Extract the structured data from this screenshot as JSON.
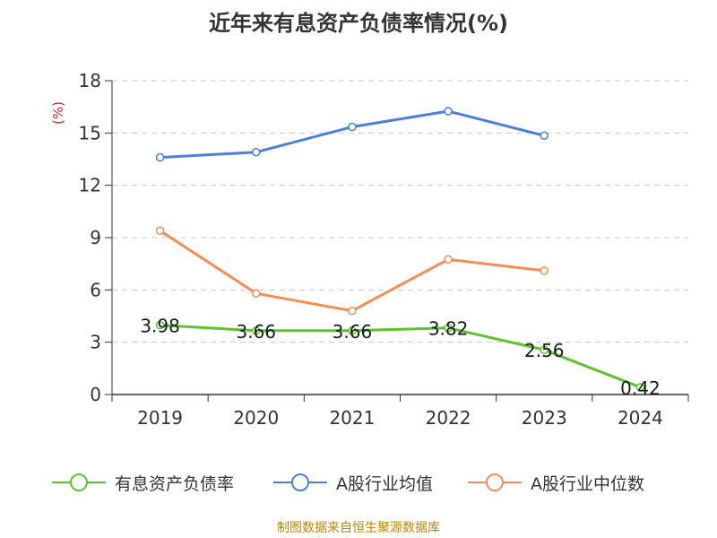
{
  "title": "近年来有息资产负债率情况(%)",
  "source": "制图数据来自恒生聚源数据库",
  "chart_data": {
    "type": "line",
    "title": "近年来有息资产负债率情况(%)",
    "ylabel": "(%)",
    "xlabel": "",
    "categories": [
      "2019",
      "2020",
      "2021",
      "2022",
      "2023",
      "2024"
    ],
    "ylim": [
      0,
      18
    ],
    "yticks": [
      0,
      3,
      6,
      9,
      12,
      15,
      18
    ],
    "grid": true,
    "legend_position": "bottom",
    "series": [
      {
        "name": "有息资产负债率",
        "color": "#5cc42a",
        "values": [
          3.98,
          3.66,
          3.66,
          3.82,
          2.56,
          0.42
        ],
        "labels": [
          "3.98",
          "3.66",
          "3.66",
          "3.82",
          "2.56",
          "0.42"
        ],
        "show_labels": true
      },
      {
        "name": "A股行业均值",
        "color": "#4a7fdb",
        "values": [
          13.6,
          13.9,
          15.35,
          16.25,
          14.85,
          null
        ],
        "show_labels": false
      },
      {
        "name": "A股行业中位数",
        "color": "#f78d54",
        "values": [
          9.4,
          5.8,
          4.8,
          7.75,
          7.1,
          null
        ],
        "show_labels": false
      }
    ]
  }
}
